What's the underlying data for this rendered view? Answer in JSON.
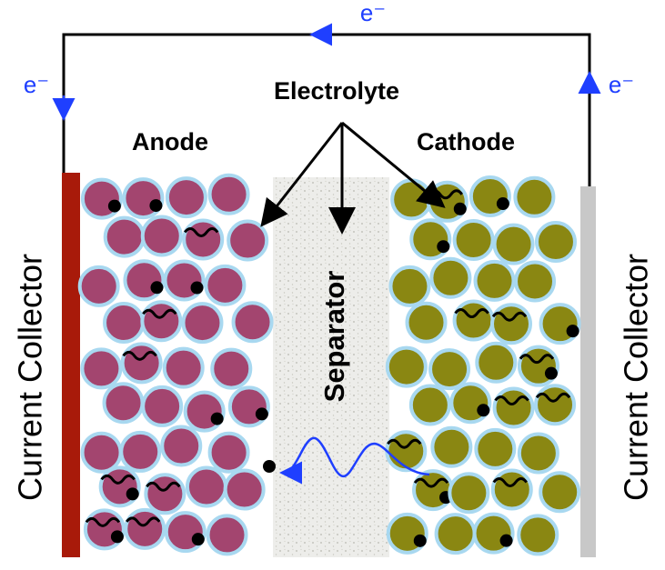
{
  "labels": {
    "electron_top": "e⁻",
    "electron_left": "e⁻",
    "electron_right": "e⁻",
    "electrolyte": "Electrolyte",
    "anode": "Anode",
    "cathode": "Cathode",
    "separator": "Separator",
    "collector_left": "Current Collector",
    "collector_right": "Current Collector"
  }
}
